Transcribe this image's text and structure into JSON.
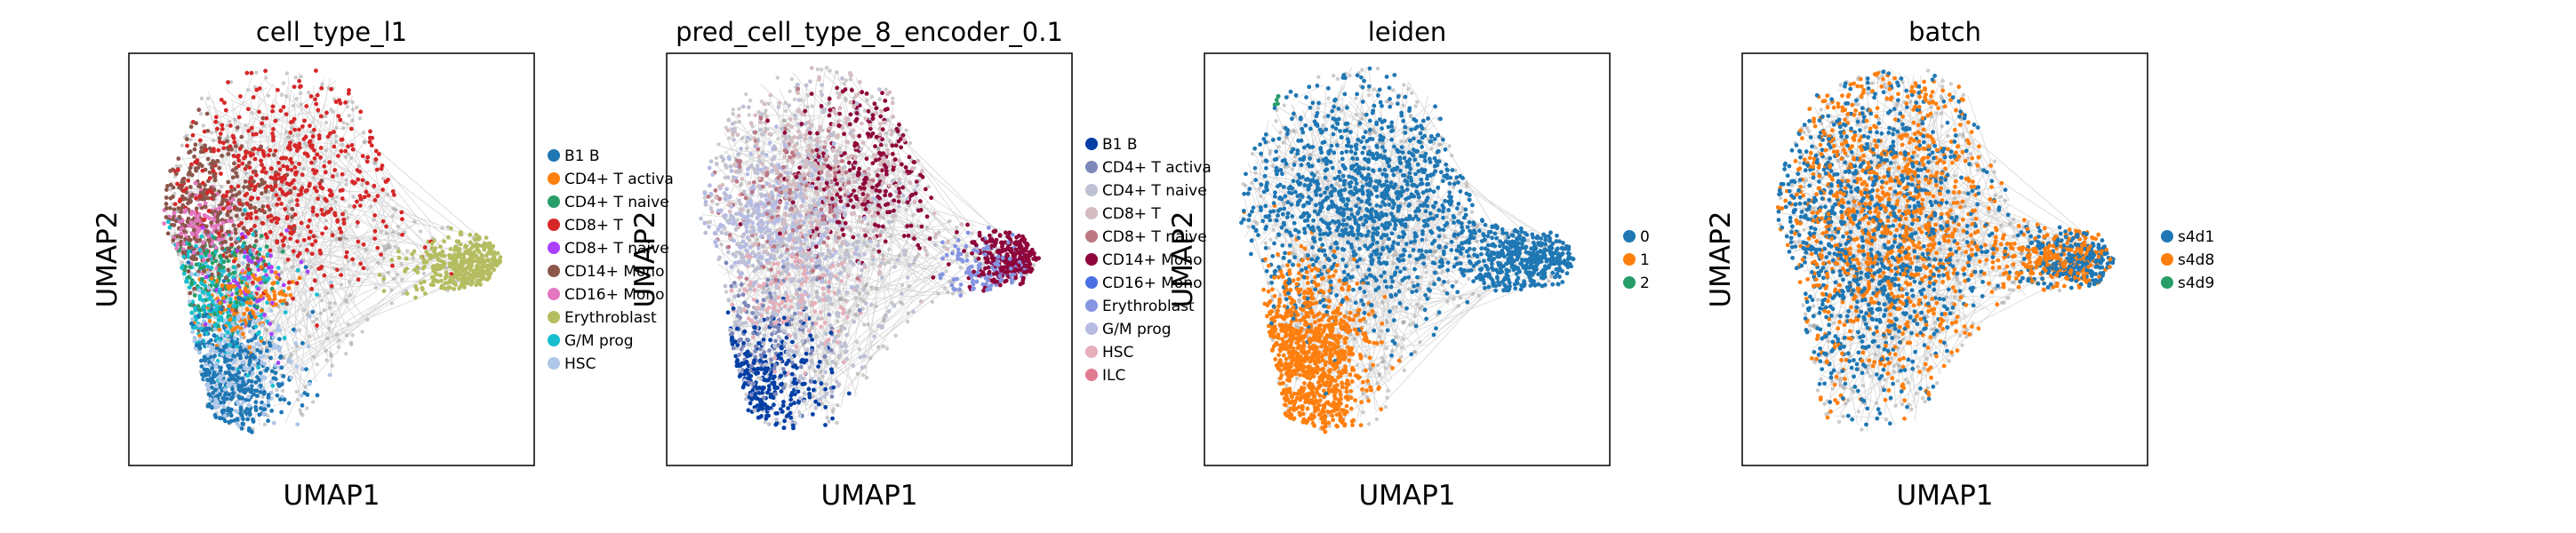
{
  "chart_data": [
    {
      "type": "scatter",
      "title": "cell_type_l1",
      "xlabel": "UMAP1",
      "ylabel": "UMAP2",
      "grid": false,
      "legend_placement": "right",
      "legend": [
        {
          "label": "B1 B",
          "color": "#1f77b4"
        },
        {
          "label": "CD4+ T activa",
          "color": "#ff7f0e"
        },
        {
          "label": "CD4+ T naive",
          "color": "#279e68"
        },
        {
          "label": "CD8+ T",
          "color": "#d62728"
        },
        {
          "label": "CD8+ T naive",
          "color": "#aa40fc"
        },
        {
          "label": "CD14+ Mono",
          "color": "#8c564b"
        },
        {
          "label": "CD16+ Mono",
          "color": "#e377c2"
        },
        {
          "label": "Erythroblast",
          "color": "#b5bd61"
        },
        {
          "label": "G/M prog",
          "color": "#17becf"
        },
        {
          "label": "HSC",
          "color": "#aec7e8"
        }
      ],
      "regions": [
        {
          "category": "CD8+ T",
          "center": [
            0.4,
            0.3
          ],
          "spread": [
            0.16,
            0.12
          ],
          "weight": 4
        },
        {
          "category": "CD14+ Mono",
          "center": [
            0.18,
            0.38
          ],
          "spread": [
            0.09,
            0.1
          ],
          "weight": 3
        },
        {
          "category": "B1 B",
          "center": [
            0.22,
            0.8
          ],
          "spread": [
            0.09,
            0.09
          ],
          "weight": 3
        },
        {
          "category": "HSC",
          "center": [
            0.22,
            0.76
          ],
          "spread": [
            0.1,
            0.09
          ],
          "weight": 2
        },
        {
          "category": "G/M prog",
          "center": [
            0.2,
            0.6
          ],
          "spread": [
            0.08,
            0.08
          ],
          "weight": 2
        },
        {
          "category": "Erythroblast",
          "center": [
            0.86,
            0.52
          ],
          "spread": [
            0.08,
            0.04
          ],
          "weight": 3
        },
        {
          "category": "CD16+ Mono",
          "center": [
            0.18,
            0.42
          ],
          "spread": [
            0.05,
            0.04
          ],
          "weight": 1
        },
        {
          "category": "CD4+ T activa",
          "center": [
            0.28,
            0.6
          ],
          "spread": [
            0.06,
            0.05
          ],
          "weight": 1
        },
        {
          "category": "CD4+ T naive",
          "center": [
            0.22,
            0.55
          ],
          "spread": [
            0.06,
            0.06
          ],
          "weight": 1
        },
        {
          "category": "CD8+ T naive",
          "center": [
            0.3,
            0.55
          ],
          "spread": [
            0.06,
            0.06
          ],
          "weight": 0.5
        }
      ]
    },
    {
      "type": "scatter",
      "title": "pred_cell_type_8_encoder_0.1",
      "xlabel": "UMAP1",
      "ylabel": "UMAP2",
      "grid": false,
      "legend_placement": "right",
      "legend": [
        {
          "label": "B1 B",
          "color": "#023fa5"
        },
        {
          "label": "CD4+ T activa",
          "color": "#7d87b9"
        },
        {
          "label": "CD4+ T naive",
          "color": "#bec1d4"
        },
        {
          "label": "CD8+ T",
          "color": "#d6bcc0"
        },
        {
          "label": "CD8+ T naive",
          "color": "#bb7784"
        },
        {
          "label": "CD14+ Mono",
          "color": "#8e063b"
        },
        {
          "label": "CD16+ Mono",
          "color": "#4a6fe3"
        },
        {
          "label": "Erythroblast",
          "color": "#8595e1"
        },
        {
          "label": "G/M prog",
          "color": "#b5bbe3"
        },
        {
          "label": "HSC",
          "color": "#e6afb9"
        },
        {
          "label": "ILC",
          "color": "#e07b91"
        }
      ],
      "regions": [
        {
          "category": "CD4+ T naive",
          "center": [
            0.3,
            0.5
          ],
          "spread": [
            0.14,
            0.22
          ],
          "weight": 4
        },
        {
          "category": "CD8+ T",
          "center": [
            0.4,
            0.3
          ],
          "spread": [
            0.14,
            0.12
          ],
          "weight": 3
        },
        {
          "category": "CD14+ Mono",
          "center": [
            0.5,
            0.28
          ],
          "spread": [
            0.1,
            0.1
          ],
          "weight": 2
        },
        {
          "category": "CD14+ Mono",
          "center": [
            0.88,
            0.5
          ],
          "spread": [
            0.06,
            0.04
          ],
          "weight": 2
        },
        {
          "category": "G/M prog",
          "center": [
            0.25,
            0.4
          ],
          "spread": [
            0.1,
            0.08
          ],
          "weight": 2
        },
        {
          "category": "B1 B",
          "center": [
            0.22,
            0.8
          ],
          "spread": [
            0.08,
            0.08
          ],
          "weight": 2
        },
        {
          "category": "CD8+ T naive",
          "center": [
            0.3,
            0.35
          ],
          "spread": [
            0.1,
            0.1
          ],
          "weight": 1
        },
        {
          "category": "CD4+ T activa",
          "center": [
            0.22,
            0.7
          ],
          "spread": [
            0.09,
            0.09
          ],
          "weight": 1
        },
        {
          "category": "HSC",
          "center": [
            0.3,
            0.6
          ],
          "spread": [
            0.08,
            0.08
          ],
          "weight": 1
        },
        {
          "category": "Erythroblast",
          "center": [
            0.8,
            0.52
          ],
          "spread": [
            0.06,
            0.04
          ],
          "weight": 1
        }
      ]
    },
    {
      "type": "scatter",
      "title": "leiden",
      "xlabel": "UMAP1",
      "ylabel": "UMAP2",
      "grid": false,
      "legend_placement": "right",
      "legend": [
        {
          "label": "0",
          "color": "#1f77b4"
        },
        {
          "label": "1",
          "color": "#ff7f0e"
        },
        {
          "label": "2",
          "color": "#279e68"
        }
      ],
      "regions": [
        {
          "category": "0",
          "center": [
            0.4,
            0.35
          ],
          "spread": [
            0.16,
            0.14
          ],
          "weight": 5
        },
        {
          "category": "0",
          "center": [
            0.82,
            0.5
          ],
          "spread": [
            0.1,
            0.05
          ],
          "weight": 2
        },
        {
          "category": "1",
          "center": [
            0.25,
            0.75
          ],
          "spread": [
            0.08,
            0.12
          ],
          "weight": 4
        },
        {
          "category": "2",
          "center": [
            0.16,
            0.1
          ],
          "spread": [
            0.01,
            0.01
          ],
          "weight": 0.05
        }
      ]
    },
    {
      "type": "scatter",
      "title": "batch",
      "xlabel": "UMAP1",
      "ylabel": "UMAP2",
      "grid": false,
      "legend_placement": "right",
      "legend": [
        {
          "label": "s4d1",
          "color": "#1f77b4"
        },
        {
          "label": "s4d8",
          "color": "#ff7f0e"
        },
        {
          "label": "s4d9",
          "color": "#279e68"
        }
      ],
      "regions": [
        {
          "category": "s4d1",
          "center": [
            0.3,
            0.45
          ],
          "spread": [
            0.16,
            0.22
          ],
          "weight": 4
        },
        {
          "category": "s4d8",
          "center": [
            0.35,
            0.4
          ],
          "spread": [
            0.16,
            0.22
          ],
          "weight": 4
        },
        {
          "category": "s4d1",
          "center": [
            0.84,
            0.5
          ],
          "spread": [
            0.08,
            0.04
          ],
          "weight": 1
        },
        {
          "category": "s4d8",
          "center": [
            0.8,
            0.5
          ],
          "spread": [
            0.08,
            0.04
          ],
          "weight": 1
        }
      ]
    }
  ]
}
